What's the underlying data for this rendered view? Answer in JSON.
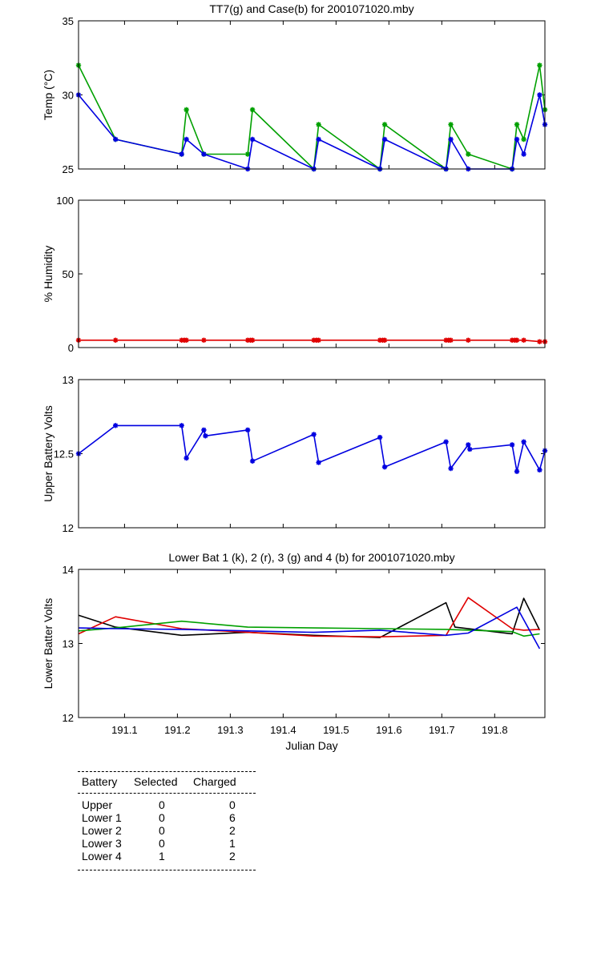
{
  "chart_data": [
    {
      "type": "line",
      "title": "TT7(g) and Case(b) for 2001071020.mby",
      "xlabel": "",
      "ylabel": "Temp  (°C)",
      "xlim": [
        191.013,
        191.895
      ],
      "ylim": [
        25,
        35
      ],
      "yticks": [
        25,
        30,
        35
      ],
      "ytick_labels": [
        "25",
        "30",
        "35"
      ],
      "series": [
        {
          "name": "TT7",
          "color": "#00a000",
          "marker": "*",
          "x": [
            191.013,
            191.083,
            191.208,
            191.217,
            191.25,
            191.333,
            191.342,
            191.458,
            191.467,
            191.583,
            191.592,
            191.708,
            191.717,
            191.75,
            191.833,
            191.842,
            191.855,
            191.885,
            191.895
          ],
          "y": [
            32,
            27,
            26,
            29,
            26,
            26,
            29,
            25,
            28,
            25,
            28,
            25,
            28,
            26,
            25,
            28,
            27,
            32,
            29
          ]
        },
        {
          "name": "Case",
          "color": "#0000e0",
          "marker": "*",
          "x": [
            191.013,
            191.083,
            191.208,
            191.217,
            191.25,
            191.333,
            191.342,
            191.458,
            191.467,
            191.583,
            191.592,
            191.708,
            191.717,
            191.75,
            191.833,
            191.842,
            191.855,
            191.885,
            191.895
          ],
          "y": [
            30,
            27,
            26,
            27,
            26,
            25,
            27,
            25,
            27,
            25,
            27,
            25,
            27,
            25,
            25,
            27,
            26,
            30,
            28
          ]
        }
      ]
    },
    {
      "type": "line",
      "title": "",
      "xlabel": "",
      "ylabel": "% Humidity",
      "xlim": [
        191.013,
        191.895
      ],
      "ylim": [
        0,
        100
      ],
      "yticks": [
        0,
        50,
        100
      ],
      "ytick_labels": [
        "0",
        "50",
        "100"
      ],
      "series": [
        {
          "name": "Humidity",
          "color": "#e00000",
          "marker": "*",
          "x": [
            191.013,
            191.083,
            191.208,
            191.213,
            191.217,
            191.25,
            191.333,
            191.338,
            191.342,
            191.458,
            191.463,
            191.467,
            191.583,
            191.588,
            191.592,
            191.708,
            191.713,
            191.717,
            191.75,
            191.833,
            191.838,
            191.842,
            191.855,
            191.885,
            191.895
          ],
          "y": [
            5,
            5,
            5,
            5,
            5,
            5,
            5,
            5,
            5,
            5,
            5,
            5,
            5,
            5,
            5,
            5,
            5,
            5,
            5,
            5,
            5,
            5,
            5,
            4,
            4
          ]
        }
      ]
    },
    {
      "type": "line",
      "title": "",
      "xlabel": "",
      "ylabel": "Upper Battery Volts",
      "xlim": [
        191.013,
        191.895
      ],
      "ylim": [
        12,
        13
      ],
      "yticks": [
        12,
        12.5,
        13
      ],
      "ytick_labels": [
        "12",
        "12.5",
        "13"
      ],
      "series": [
        {
          "name": "Upper",
          "color": "#0000e0",
          "marker": "*",
          "x": [
            191.013,
            191.083,
            191.208,
            191.217,
            191.25,
            191.253,
            191.333,
            191.342,
            191.458,
            191.467,
            191.583,
            191.592,
            191.708,
            191.717,
            191.75,
            191.753,
            191.833,
            191.842,
            191.855,
            191.885,
            191.895
          ],
          "y": [
            12.5,
            12.69,
            12.69,
            12.47,
            12.66,
            12.62,
            12.66,
            12.45,
            12.63,
            12.44,
            12.61,
            12.41,
            12.58,
            12.4,
            12.56,
            12.53,
            12.56,
            12.38,
            12.58,
            12.39,
            12.52
          ]
        }
      ]
    },
    {
      "type": "line",
      "title": "Lower Bat 1 (k), 2 (r), 3 (g) and 4 (b) for 2001071020.mby",
      "xlabel": "Julian Day",
      "ylabel": "Lower Batter Volts",
      "xlim": [
        191.013,
        191.895
      ],
      "ylim": [
        12,
        14
      ],
      "yticks": [
        12,
        13,
        14
      ],
      "ytick_labels": [
        "12",
        "13",
        "14"
      ],
      "xticks": [
        191.1,
        191.2,
        191.3,
        191.4,
        191.5,
        191.6,
        191.7,
        191.8
      ],
      "xtick_labels": [
        "191.1",
        "191.2",
        "191.3",
        "191.4",
        "191.5",
        "191.6",
        "191.7",
        "191.8"
      ],
      "series": [
        {
          "name": "Lower 1 (k)",
          "color": "#000000",
          "x": [
            191.013,
            191.083,
            191.208,
            191.333,
            191.458,
            191.583,
            191.708,
            191.725,
            191.833,
            191.855,
            191.885
          ],
          "y": [
            13.38,
            13.22,
            13.11,
            13.15,
            13.11,
            13.08,
            13.55,
            13.22,
            13.13,
            13.61,
            13.18
          ]
        },
        {
          "name": "Lower 2 (r)",
          "color": "#e00000",
          "x": [
            191.013,
            191.083,
            191.208,
            191.333,
            191.458,
            191.583,
            191.708,
            191.75,
            191.833,
            191.855,
            191.885
          ],
          "y": [
            13.13,
            13.36,
            13.2,
            13.15,
            13.1,
            13.09,
            13.11,
            13.62,
            13.2,
            13.18,
            13.19
          ]
        },
        {
          "name": "Lower 3 (g)",
          "color": "#00a000",
          "x": [
            191.013,
            191.083,
            191.208,
            191.333,
            191.458,
            191.583,
            191.708,
            191.833,
            191.855,
            191.885
          ],
          "y": [
            13.17,
            13.21,
            13.3,
            13.22,
            13.21,
            13.2,
            13.19,
            13.16,
            13.1,
            13.13
          ]
        },
        {
          "name": "Lower 4 (b)",
          "color": "#0000e0",
          "x": [
            191.013,
            191.083,
            191.208,
            191.333,
            191.458,
            191.583,
            191.708,
            191.75,
            191.842,
            191.885
          ],
          "y": [
            13.21,
            13.2,
            13.19,
            13.17,
            13.15,
            13.18,
            13.11,
            13.14,
            13.49,
            12.93
          ]
        }
      ]
    }
  ],
  "table": {
    "headers": [
      "Battery",
      "Selected",
      "Charged"
    ],
    "rows": [
      [
        "Upper",
        "0",
        "0"
      ],
      [
        "Lower 1",
        "0",
        "6"
      ],
      [
        "Lower 2",
        "0",
        "2"
      ],
      [
        "Lower 3",
        "0",
        "1"
      ],
      [
        "Lower 4",
        "1",
        "2"
      ]
    ]
  }
}
